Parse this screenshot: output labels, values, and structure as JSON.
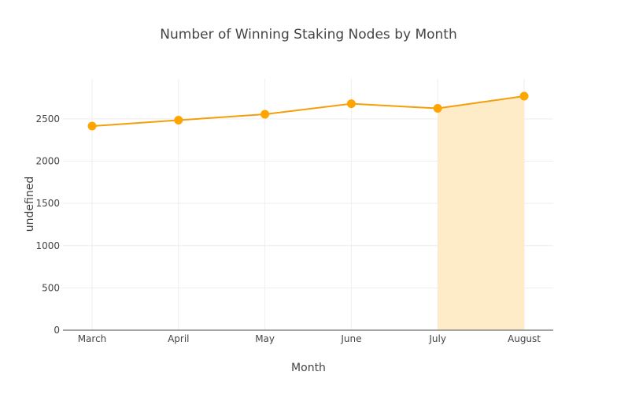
{
  "chart_data": {
    "type": "line",
    "title": "Number of Winning Staking Nodes by Month",
    "xlabel": "Month",
    "ylabel": "undefined",
    "categories": [
      "March",
      "April",
      "May",
      "June",
      "July",
      "August"
    ],
    "series": [
      {
        "name": "Winning Staking Nodes",
        "values": [
          2415,
          2485,
          2555,
          2680,
          2625,
          2770
        ],
        "color": "#FFA500",
        "mode": "lines+markers"
      }
    ],
    "shaded_region": {
      "from": "July",
      "to": "August",
      "fill": "#FEEBC8",
      "description": "area filled under line between July and August"
    },
    "ylim": [
      0,
      2975
    ],
    "yticks": [
      0,
      500,
      1000,
      1500,
      2000,
      2500
    ],
    "grid": true,
    "legend": false
  },
  "colors": {
    "line": "#F59E0B",
    "marker": "#FFA500",
    "fill": "#FEEBC8",
    "grid": "#EEEEEE",
    "axis": "#888888",
    "text": "#444444"
  }
}
